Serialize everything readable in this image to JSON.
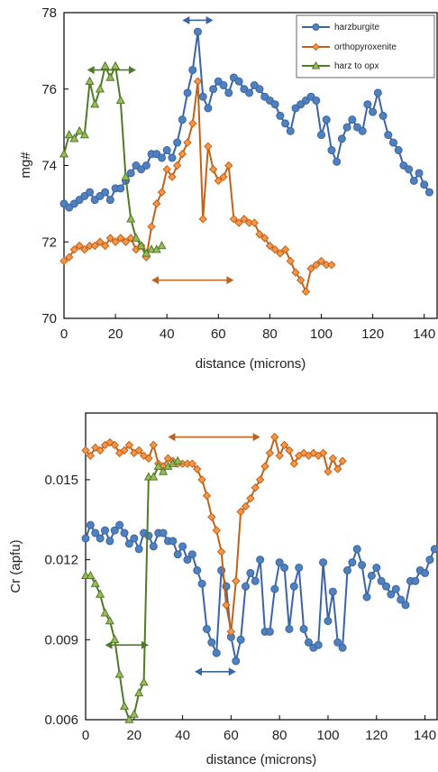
{
  "colors": {
    "harzburgite": "#3a63a8",
    "harzburgite_fill": "#4f81bd",
    "orthopyroxenite": "#c0621a",
    "orthopyroxenite_fill": "#f79646",
    "harz_to_opx": "#4f7a28",
    "harz_to_opx_fill": "#9bbb59"
  },
  "chart_data": [
    {
      "type": "line",
      "title": "",
      "xlabel": "distance (microns)",
      "ylabel": "mg#",
      "xlim": [
        0,
        145
      ],
      "ylim": [
        70,
        78
      ],
      "xticks": [
        "0",
        "20",
        "40",
        "60",
        "80",
        "100",
        "120",
        "140"
      ],
      "yticks": [
        "70",
        "72",
        "74",
        "76",
        "78"
      ],
      "grid": false,
      "legend": {
        "placement": "top-right",
        "entries": [
          "harzburgite",
          "orthopyroxenite",
          "harz to opx"
        ]
      },
      "series": [
        {
          "name": "harzburgite",
          "x": [
            0,
            2,
            4,
            6,
            8,
            10,
            12,
            14,
            16,
            18,
            20,
            22,
            24,
            26,
            28,
            30,
            32,
            34,
            36,
            38,
            40,
            42,
            44,
            46,
            48,
            50,
            52,
            54,
            56,
            58,
            60,
            62,
            64,
            66,
            68,
            70,
            72,
            74,
            76,
            78,
            80,
            82,
            84,
            86,
            88,
            90,
            92,
            94,
            96,
            98,
            100,
            102,
            104,
            106,
            108,
            110,
            112,
            114,
            116,
            118,
            120,
            122,
            124,
            126,
            128,
            130,
            132,
            134,
            136,
            138,
            140,
            142
          ],
          "y": [
            73.0,
            72.9,
            73.0,
            73.1,
            73.2,
            73.3,
            73.1,
            73.2,
            73.3,
            73.1,
            73.4,
            73.4,
            73.6,
            73.8,
            74.0,
            73.9,
            74.0,
            74.3,
            74.3,
            74.2,
            74.4,
            74.2,
            74.6,
            75.2,
            75.9,
            76.5,
            77.5,
            75.8,
            75.5,
            76.0,
            76.2,
            76.1,
            75.9,
            76.3,
            76.2,
            76.0,
            75.9,
            76.1,
            76.0,
            75.8,
            75.7,
            75.6,
            75.3,
            75.1,
            74.9,
            75.5,
            75.6,
            75.7,
            75.8,
            75.7,
            74.8,
            75.2,
            74.4,
            74.1,
            74.7,
            75.0,
            75.2,
            75.0,
            74.9,
            75.6,
            75.4,
            75.9,
            75.3,
            74.8,
            74.6,
            74.4,
            74.0,
            73.9,
            73.6,
            73.8,
            73.5,
            73.3
          ]
        },
        {
          "name": "orthopyroxenite",
          "x": [
            0,
            2,
            4,
            6,
            8,
            10,
            12,
            14,
            16,
            18,
            20,
            22,
            24,
            26,
            28,
            30,
            32,
            34,
            36,
            38,
            40,
            42,
            44,
            46,
            48,
            50,
            52,
            54,
            56,
            58,
            60,
            62,
            64,
            66,
            68,
            70,
            72,
            74,
            76,
            78,
            80,
            82,
            84,
            86,
            88,
            90,
            92,
            94,
            96,
            98,
            100,
            102,
            104
          ],
          "y": [
            71.5,
            71.6,
            71.8,
            71.9,
            71.8,
            71.9,
            71.9,
            72.0,
            71.9,
            72.1,
            72.0,
            72.1,
            72.0,
            72.1,
            71.8,
            71.9,
            71.6,
            72.4,
            73.0,
            73.3,
            73.9,
            73.7,
            74.0,
            74.3,
            74.6,
            75.1,
            76.2,
            72.6,
            74.5,
            73.9,
            73.6,
            73.7,
            74.0,
            72.6,
            72.5,
            72.6,
            72.5,
            72.5,
            72.2,
            72.1,
            71.9,
            71.8,
            71.7,
            71.8,
            71.5,
            71.2,
            71.0,
            70.7,
            71.3,
            71.4,
            71.5,
            71.4,
            71.4
          ]
        },
        {
          "name": "harz to opx",
          "x": [
            0,
            2,
            4,
            6,
            8,
            10,
            12,
            14,
            16,
            18,
            20,
            22,
            24,
            26,
            28,
            30,
            32,
            34,
            36,
            38
          ],
          "y": [
            74.3,
            74.8,
            74.7,
            74.9,
            74.8,
            76.2,
            75.6,
            76.0,
            76.6,
            76.3,
            76.6,
            75.7,
            73.7,
            72.6,
            72.1,
            71.9,
            71.7,
            71.8,
            71.8,
            71.9
          ]
        }
      ],
      "annotations": [
        {
          "type": "double-arrow",
          "x_range": [
            46,
            58
          ],
          "y": 77.8,
          "color": "harzburgite"
        },
        {
          "type": "double-arrow",
          "x_range": [
            9,
            28
          ],
          "y": 76.5,
          "color": "harz_to_opx"
        },
        {
          "type": "double-arrow",
          "x_range": [
            34,
            66
          ],
          "y": 71.0,
          "color": "orthopyroxenite"
        }
      ]
    },
    {
      "type": "line",
      "title": "",
      "xlabel": "distance (microns)",
      "ylabel": "Cr (apfu)",
      "xlim": [
        0,
        145
      ],
      "ylim": [
        0.006,
        0.0175
      ],
      "xticks": [
        "0",
        "20",
        "40",
        "60",
        "80",
        "100",
        "120",
        "140"
      ],
      "yticks": [
        "0.006",
        "0.009",
        "0.012",
        "0.015"
      ],
      "grid": false,
      "legend": {
        "placement": "none",
        "entries": []
      },
      "series": [
        {
          "name": "harzburgite",
          "x": [
            0,
            2,
            4,
            6,
            8,
            10,
            12,
            14,
            16,
            18,
            20,
            22,
            24,
            26,
            28,
            30,
            32,
            34,
            36,
            38,
            40,
            42,
            44,
            46,
            48,
            50,
            52,
            54,
            56,
            58,
            60,
            62,
            64,
            66,
            68,
            70,
            72,
            74,
            76,
            78,
            80,
            82,
            84,
            86,
            88,
            90,
            92,
            94,
            96,
            98,
            100,
            102,
            104,
            106,
            108,
            110,
            112,
            114,
            116,
            118,
            120,
            122,
            124,
            126,
            128,
            130,
            132,
            134,
            136,
            138,
            140,
            142,
            144
          ],
          "y": [
            0.0128,
            0.0133,
            0.013,
            0.0128,
            0.0131,
            0.0127,
            0.0131,
            0.0133,
            0.013,
            0.0126,
            0.0128,
            0.0124,
            0.013,
            0.0129,
            0.0125,
            0.013,
            0.013,
            0.0127,
            0.0127,
            0.0122,
            0.0125,
            0.012,
            0.0122,
            0.0116,
            0.0111,
            0.0094,
            0.0089,
            0.0085,
            0.0116,
            0.011,
            0.0091,
            0.0082,
            0.009,
            0.011,
            0.0115,
            0.0112,
            0.012,
            0.0093,
            0.0093,
            0.0109,
            0.0119,
            0.0117,
            0.0094,
            0.011,
            0.0117,
            0.0094,
            0.0089,
            0.0087,
            0.0088,
            0.0119,
            0.0097,
            0.0108,
            0.0089,
            0.0087,
            0.0116,
            0.0119,
            0.0124,
            0.0118,
            0.0106,
            0.0114,
            0.0117,
            0.0112,
            0.011,
            0.0107,
            0.0109,
            0.0105,
            0.0103,
            0.0112,
            0.0112,
            0.0116,
            0.0115,
            0.012,
            0.0124
          ]
        },
        {
          "name": "orthopyroxenite",
          "x": [
            0,
            2,
            4,
            6,
            8,
            10,
            12,
            14,
            16,
            18,
            20,
            22,
            24,
            26,
            28,
            30,
            32,
            34,
            36,
            38,
            40,
            42,
            44,
            46,
            48,
            50,
            52,
            54,
            56,
            58,
            60,
            62,
            64,
            66,
            68,
            70,
            72,
            74,
            76,
            78,
            80,
            82,
            84,
            86,
            88,
            90,
            92,
            94,
            96,
            98,
            100,
            102,
            104,
            106
          ],
          "y": [
            0.0161,
            0.0159,
            0.0162,
            0.0161,
            0.0163,
            0.0164,
            0.0163,
            0.016,
            0.0161,
            0.0163,
            0.016,
            0.0161,
            0.0159,
            0.0158,
            0.0163,
            0.0156,
            0.0155,
            0.0158,
            0.0157,
            0.0156,
            0.0156,
            0.0156,
            0.0156,
            0.0154,
            0.015,
            0.0144,
            0.0136,
            0.0131,
            0.0123,
            0.0103,
            0.0093,
            0.0112,
            0.0138,
            0.014,
            0.0143,
            0.0147,
            0.015,
            0.0155,
            0.016,
            0.0166,
            0.0159,
            0.0163,
            0.0161,
            0.0156,
            0.0159,
            0.016,
            0.0159,
            0.016,
            0.0159,
            0.016,
            0.0153,
            0.0158,
            0.0154,
            0.0157
          ]
        },
        {
          "name": "harz to opx",
          "x": [
            0,
            2,
            4,
            6,
            8,
            10,
            12,
            14,
            16,
            18,
            20,
            22,
            24,
            26,
            28,
            30,
            32,
            34,
            36,
            38
          ],
          "y": [
            0.0114,
            0.0114,
            0.0111,
            0.0107,
            0.01,
            0.0097,
            0.009,
            0.0077,
            0.0065,
            0.006,
            0.0062,
            0.007,
            0.0074,
            0.0151,
            0.0151,
            0.0155,
            0.0153,
            0.0155,
            0.0156,
            0.0157
          ]
        }
      ],
      "annotations": [
        {
          "type": "double-arrow",
          "x_range": [
            34,
            72
          ],
          "y": 0.0166,
          "color": "orthopyroxenite"
        },
        {
          "type": "double-arrow",
          "x_range": [
            8,
            26
          ],
          "y": 0.0088,
          "color": "harz_to_opx"
        },
        {
          "type": "double-arrow",
          "x_range": [
            45,
            62
          ],
          "y": 0.0078,
          "color": "harzburgite"
        }
      ]
    }
  ]
}
